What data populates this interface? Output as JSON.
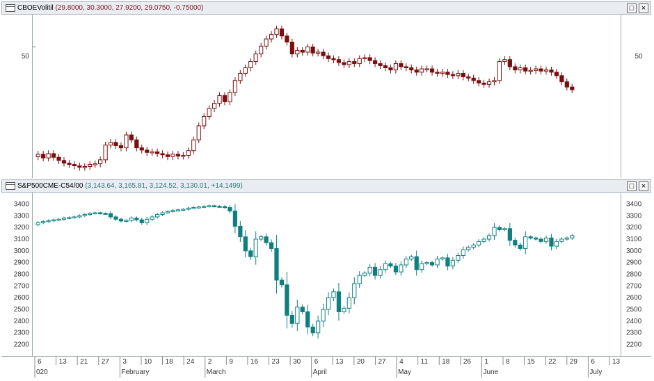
{
  "pane1": {
    "symbol": "CBOEVolitil",
    "values": "(29.8000, 30.3000, 27.9200, 29.0750, -0.75000)",
    "restore_label": "□",
    "close_label": "×",
    "y_ticks": [
      {
        "label": "50",
        "value": 50
      }
    ],
    "color": "#7a0f0f"
  },
  "pane2": {
    "symbol": "S&P500CME-C54/00",
    "values": "(3,143.64, 3,165.81, 3,124.52, 3,130.01, +14.1499)",
    "restore_label": "□",
    "close_label": "×",
    "y_ticks": [
      "3400",
      "3300",
      "3200",
      "3100",
      "3000",
      "2900",
      "2800",
      "2700",
      "2600",
      "2500",
      "2400",
      "2300",
      "2200"
    ],
    "color": "#0f7f7f"
  },
  "xaxis": {
    "day_ticks": [
      "6",
      "13",
      "21",
      "27",
      "3",
      "10",
      "18",
      "24",
      "2",
      "9",
      "16",
      "23",
      "30",
      "6",
      "13",
      "20",
      "27",
      "4",
      "11",
      "18",
      "26",
      "1",
      "8",
      "15",
      "22",
      "29",
      "6",
      "13"
    ],
    "month_labels": [
      "020",
      "February",
      "March",
      "April",
      "May",
      "June",
      "July"
    ]
  },
  "chart_data": [
    {
      "type": "candlestick",
      "title": "CBOEVolitil",
      "y_ticks": [
        50
      ],
      "close_series": [
        13.9,
        13.3,
        14.0,
        13.4,
        12.9,
        12.5,
        12.3,
        12.1,
        11.9,
        12.0,
        12.3,
        12.4,
        13.0,
        15.5,
        16.0,
        15.4,
        15.0,
        17.5,
        16.5,
        15.0,
        14.6,
        14.2,
        14.3,
        14.0,
        13.8,
        13.5,
        13.9,
        13.6,
        13.7,
        14.5,
        16.5,
        19.5,
        21.8,
        24.0,
        25.5,
        28.0,
        26.0,
        29.0,
        33.5,
        36.5,
        39.0,
        42.0,
        46.0,
        50.5,
        55.0,
        58.0,
        62.0,
        57.0,
        53.0,
        46.0,
        48.0,
        47.0,
        50.0,
        46.5,
        47.0,
        45.0,
        43.5,
        43.0,
        41.5,
        40.5,
        42.0,
        41.0,
        43.5,
        44.0,
        42.5,
        41.0,
        40.0,
        39.0,
        38.0,
        41.0,
        39.5,
        39.0,
        38.0,
        37.0,
        38.5,
        38.5,
        37.0,
        36.5,
        37.0,
        36.0,
        35.5,
        36.5,
        35.0,
        34.5,
        33.5,
        32.5,
        32.0,
        33.0,
        33.5,
        42.0,
        43.0,
        39.5,
        38.0,
        39.0,
        37.5,
        37.8,
        38.5,
        37.5,
        38.0,
        37.0,
        35.5,
        33.0,
        31.0,
        30.0
      ]
    },
    {
      "type": "candlestick",
      "title": "S&P500CME-C54/00",
      "ylim": [
        2150,
        3450
      ],
      "close_series": [
        3240,
        3250,
        3258,
        3265,
        3270,
        3280,
        3285,
        3290,
        3300,
        3310,
        3320,
        3325,
        3320,
        3318,
        3290,
        3270,
        3255,
        3260,
        3280,
        3265,
        3240,
        3270,
        3290,
        3310,
        3325,
        3335,
        3345,
        3350,
        3355,
        3365,
        3370,
        3375,
        3380,
        3385,
        3380,
        3378,
        3370,
        3340,
        3210,
        3120,
        3000,
        2950,
        3100,
        3120,
        3070,
        3020,
        2750,
        2710,
        2450,
        2380,
        2520,
        2480,
        2350,
        2300,
        2400,
        2500,
        2600,
        2650,
        2480,
        2510,
        2600,
        2720,
        2790,
        2810,
        2860,
        2790,
        2840,
        2890,
        2870,
        2820,
        2880,
        2930,
        2950,
        2840,
        2890,
        2900,
        2880,
        2930,
        2940,
        2870,
        2920,
        2960,
        3010,
        3030,
        3050,
        3080,
        3100,
        3130,
        3200,
        3180,
        3190,
        3090,
        3050,
        3020,
        3120,
        3110,
        3100,
        3080,
        3110,
        3040,
        3080,
        3100,
        3110,
        3130
      ]
    }
  ]
}
